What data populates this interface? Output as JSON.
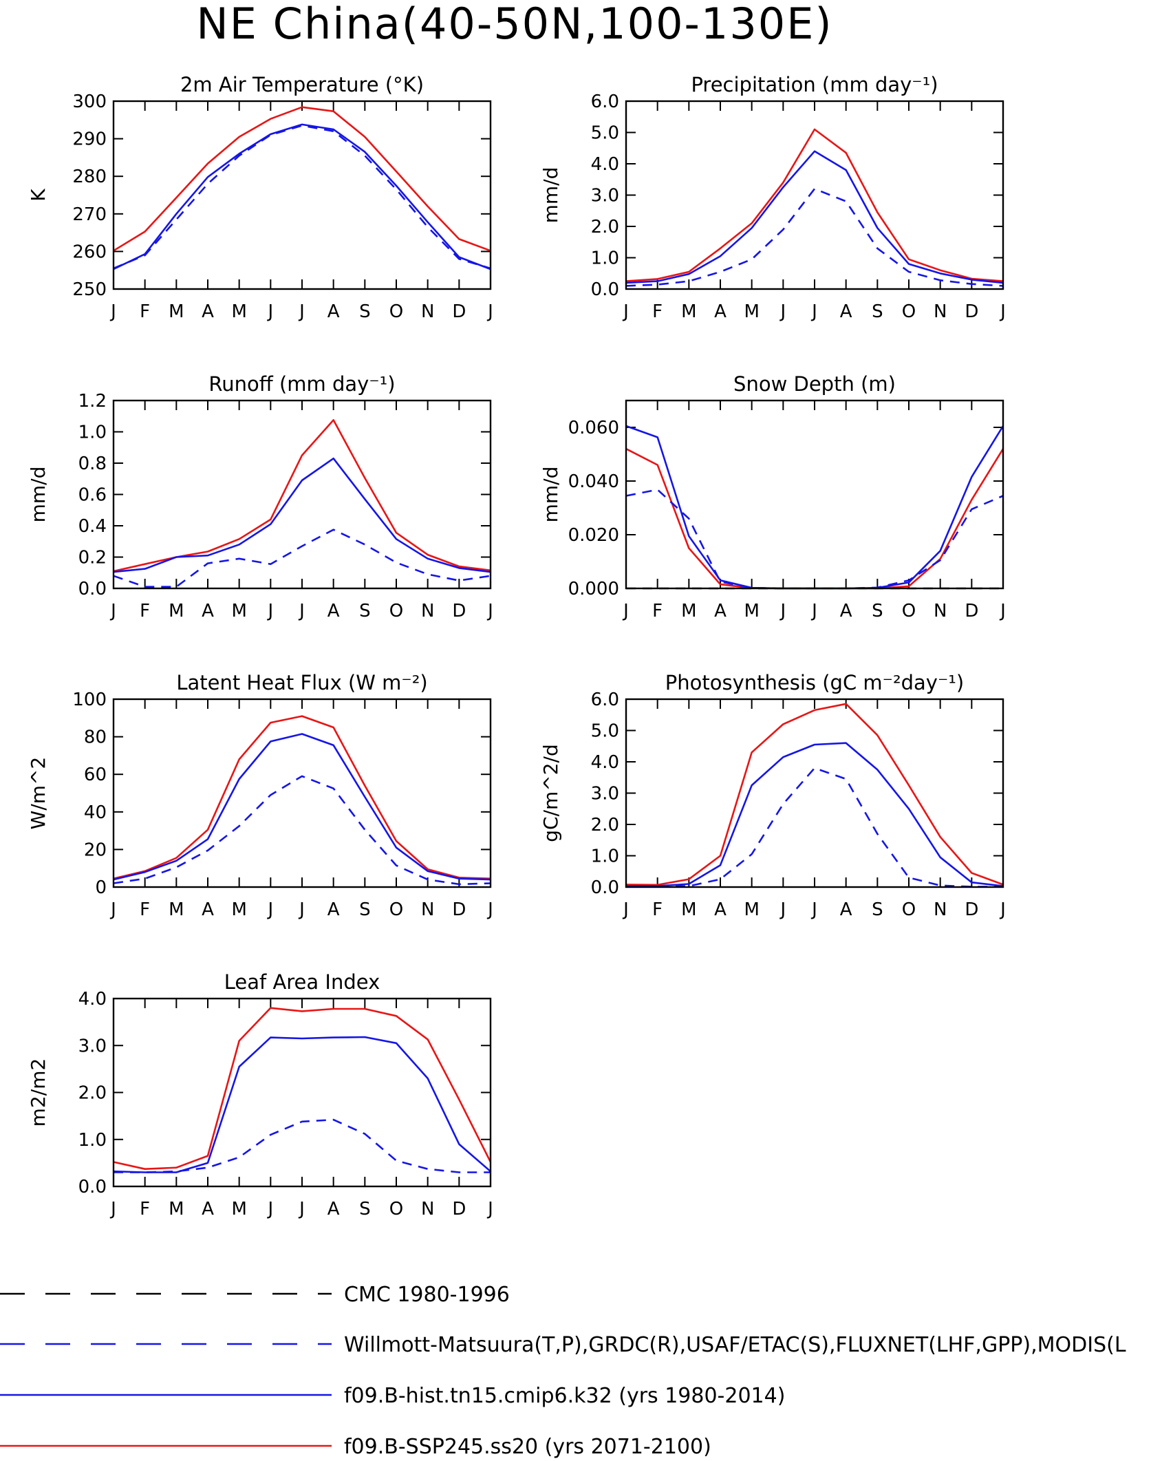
{
  "title": "NE China(40-50N,100-130E)",
  "colors": {
    "obs_cmc": "#000000",
    "obs_dashed": "#1515e8",
    "hist": "#1515e8",
    "ssp": "#e81515"
  },
  "months": [
    "J",
    "F",
    "M",
    "A",
    "M",
    "J",
    "J",
    "A",
    "S",
    "O",
    "N",
    "D",
    "J"
  ],
  "legend": [
    {
      "label": "CMC 1980-1996",
      "color": "#000000",
      "style": "dashed"
    },
    {
      "label": "Willmott-Matsuura(T,P),GRDC(R),USAF/ETAC(S),FLUXNET(LHF,GPP),MODIS(L",
      "color": "#1515e8",
      "style": "dashed"
    },
    {
      "label": "f09.B-hist.tn15.cmip6.k32 (yrs 1980-2014)",
      "color": "#1515e8",
      "style": "solid"
    },
    {
      "label": "f09.B-SSP245.ss20 (yrs 2071-2100)",
      "color": "#e81515",
      "style": "solid"
    }
  ],
  "chart_data": [
    {
      "type": "line",
      "title": "2m Air Temperature (°K)",
      "ylabel": "K",
      "ylim": [
        250,
        300
      ],
      "yticks": [
        250,
        260,
        270,
        280,
        290,
        300
      ],
      "yticklabels": [
        "250",
        "260",
        "270",
        "280",
        "290",
        "300"
      ],
      "series": [
        {
          "key": "ssp",
          "dashed": false,
          "values": [
            260.2,
            265.3,
            274.3,
            283.4,
            290.5,
            295.3,
            298.4,
            297.3,
            290.5,
            281.3,
            272.0,
            263.3,
            260.2
          ]
        },
        {
          "key": "hist",
          "dashed": false,
          "values": [
            255.3,
            259.3,
            270.0,
            279.8,
            286.0,
            291.2,
            293.8,
            292.5,
            286.5,
            277.5,
            267.8,
            258.5,
            255.3
          ]
        },
        {
          "key": "obs_dashed",
          "dashed": true,
          "values": [
            255.5,
            259.0,
            268.5,
            278.0,
            285.5,
            291.0,
            293.5,
            292.0,
            285.5,
            276.5,
            266.5,
            258.0,
            255.5
          ]
        }
      ]
    },
    {
      "type": "line",
      "title": "Precipitation (mm day⁻¹)",
      "ylabel": "mm/d",
      "ylim": [
        0,
        6
      ],
      "yticks": [
        0,
        1,
        2,
        3,
        4,
        5,
        6
      ],
      "yticklabels": [
        "0.0",
        "1.0",
        "2.0",
        "3.0",
        "4.0",
        "5.0",
        "6.0"
      ],
      "series": [
        {
          "key": "ssp",
          "dashed": false,
          "values": [
            0.25,
            0.32,
            0.55,
            1.3,
            2.1,
            3.4,
            5.1,
            4.35,
            2.45,
            0.95,
            0.6,
            0.33,
            0.25
          ]
        },
        {
          "key": "hist",
          "dashed": false,
          "values": [
            0.2,
            0.25,
            0.48,
            1.05,
            1.95,
            3.25,
            4.4,
            3.8,
            1.95,
            0.8,
            0.5,
            0.3,
            0.2
          ]
        },
        {
          "key": "obs_dashed",
          "dashed": true,
          "values": [
            0.1,
            0.14,
            0.25,
            0.55,
            0.95,
            1.9,
            3.2,
            2.8,
            1.3,
            0.55,
            0.28,
            0.16,
            0.1
          ]
        }
      ]
    },
    {
      "type": "line",
      "title": "Runoff (mm day⁻¹)",
      "ylabel": "mm/d",
      "ylim": [
        0,
        1.2
      ],
      "yticks": [
        0,
        0.2,
        0.4,
        0.6,
        0.8,
        1.0,
        1.2
      ],
      "yticklabels": [
        "0.0",
        "0.2",
        "0.4",
        "0.6",
        "0.8",
        "1.0",
        "1.2"
      ],
      "series": [
        {
          "key": "ssp",
          "dashed": false,
          "values": [
            0.11,
            0.155,
            0.2,
            0.235,
            0.315,
            0.44,
            0.85,
            1.075,
            0.705,
            0.355,
            0.215,
            0.14,
            0.115
          ]
        },
        {
          "key": "hist",
          "dashed": false,
          "values": [
            0.105,
            0.125,
            0.2,
            0.21,
            0.28,
            0.41,
            0.69,
            0.83,
            0.57,
            0.315,
            0.19,
            0.13,
            0.105
          ]
        },
        {
          "key": "obs_dashed",
          "dashed": true,
          "values": [
            0.08,
            0.01,
            0.01,
            0.16,
            0.19,
            0.155,
            0.27,
            0.375,
            0.28,
            0.165,
            0.09,
            0.05,
            0.08
          ]
        }
      ]
    },
    {
      "type": "line",
      "title": "Snow Depth (m)",
      "ylabel": "mm/d",
      "ylim": [
        0,
        0.07
      ],
      "yticks": [
        0,
        0.02,
        0.04,
        0.06
      ],
      "yticklabels": [
        "0.000",
        "0.020",
        "0.040",
        "0.060"
      ],
      "series": [
        {
          "key": "obs_cmc",
          "dashed": true,
          "values": [
            0,
            0,
            0,
            0,
            0,
            0,
            0,
            0,
            0,
            0,
            0,
            0,
            0
          ]
        },
        {
          "key": "ssp",
          "dashed": false,
          "values": [
            0.052,
            0.046,
            0.015,
            0.0015,
            0.0001,
            0,
            0,
            0,
            0,
            0.0008,
            0.011,
            0.033,
            0.052
          ]
        },
        {
          "key": "hist",
          "dashed": false,
          "values": [
            0.0605,
            0.0563,
            0.0195,
            0.003,
            0.0002,
            0,
            0,
            0,
            0.0002,
            0.0022,
            0.014,
            0.0415,
            0.0605
          ]
        },
        {
          "key": "obs_dashed",
          "dashed": true,
          "values": [
            0.0345,
            0.0368,
            0.026,
            0.0025,
            0.0002,
            0,
            0,
            0,
            0.0003,
            0.003,
            0.0105,
            0.0295,
            0.0345
          ]
        }
      ]
    },
    {
      "type": "line",
      "title": "Latent Heat Flux (W m⁻²)",
      "ylabel": "W/m^2",
      "ylim": [
        0,
        100
      ],
      "yticks": [
        0,
        20,
        40,
        60,
        80,
        100
      ],
      "yticklabels": [
        "0",
        "20",
        "40",
        "60",
        "80",
        "100"
      ],
      "series": [
        {
          "key": "ssp",
          "dashed": false,
          "values": [
            4.5,
            8.5,
            15.5,
            30.5,
            68.0,
            87.5,
            91.0,
            85.0,
            54.0,
            24.5,
            9.5,
            5.0,
            4.5
          ]
        },
        {
          "key": "hist",
          "dashed": false,
          "values": [
            4.0,
            8.0,
            14.0,
            25.5,
            57.5,
            77.5,
            81.5,
            75.5,
            48.0,
            21.0,
            8.5,
            4.5,
            4.0
          ]
        },
        {
          "key": "obs_dashed",
          "dashed": true,
          "values": [
            2.0,
            4.5,
            10.5,
            19.5,
            32.5,
            49.0,
            59.0,
            52.5,
            30.5,
            11.5,
            4.0,
            1.5,
            2.0
          ]
        }
      ]
    },
    {
      "type": "line",
      "title": "Photosynthesis (gC m⁻²day⁻¹)",
      "ylabel": "gC/m^2/d",
      "ylim": [
        0,
        6
      ],
      "yticks": [
        0,
        1,
        2,
        3,
        4,
        5,
        6
      ],
      "yticklabels": [
        "0.0",
        "1.0",
        "2.0",
        "3.0",
        "4.0",
        "5.0",
        "6.0"
      ],
      "series": [
        {
          "key": "ssp",
          "dashed": false,
          "values": [
            0.08,
            0.07,
            0.25,
            1.0,
            4.3,
            5.2,
            5.65,
            5.85,
            4.85,
            3.25,
            1.6,
            0.45,
            0.08
          ]
        },
        {
          "key": "hist",
          "dashed": false,
          "values": [
            0.03,
            0.03,
            0.1,
            0.7,
            3.25,
            4.15,
            4.55,
            4.6,
            3.75,
            2.5,
            0.95,
            0.15,
            0.03
          ]
        },
        {
          "key": "obs_dashed",
          "dashed": true,
          "values": [
            0.01,
            0.01,
            0.03,
            0.25,
            1.05,
            2.65,
            3.8,
            3.45,
            1.7,
            0.3,
            0.05,
            0.01,
            0.01
          ]
        }
      ]
    },
    {
      "type": "line",
      "title": "Leaf Area Index",
      "ylabel": "m2/m2",
      "ylim": [
        0,
        4
      ],
      "yticks": [
        0,
        1,
        2,
        3,
        4
      ],
      "yticklabels": [
        "0.0",
        "1.0",
        "2.0",
        "3.0",
        "4.0"
      ],
      "series": [
        {
          "key": "ssp",
          "dashed": false,
          "values": [
            0.52,
            0.37,
            0.4,
            0.65,
            3.1,
            3.8,
            3.73,
            3.78,
            3.78,
            3.63,
            3.13,
            1.85,
            0.52
          ]
        },
        {
          "key": "hist",
          "dashed": false,
          "values": [
            0.32,
            0.3,
            0.3,
            0.5,
            2.55,
            3.17,
            3.15,
            3.17,
            3.18,
            3.05,
            2.3,
            0.9,
            0.32
          ]
        },
        {
          "key": "obs_dashed",
          "dashed": true,
          "values": [
            0.3,
            0.3,
            0.32,
            0.4,
            0.62,
            1.1,
            1.38,
            1.42,
            1.12,
            0.55,
            0.37,
            0.3,
            0.3
          ]
        }
      ]
    }
  ]
}
